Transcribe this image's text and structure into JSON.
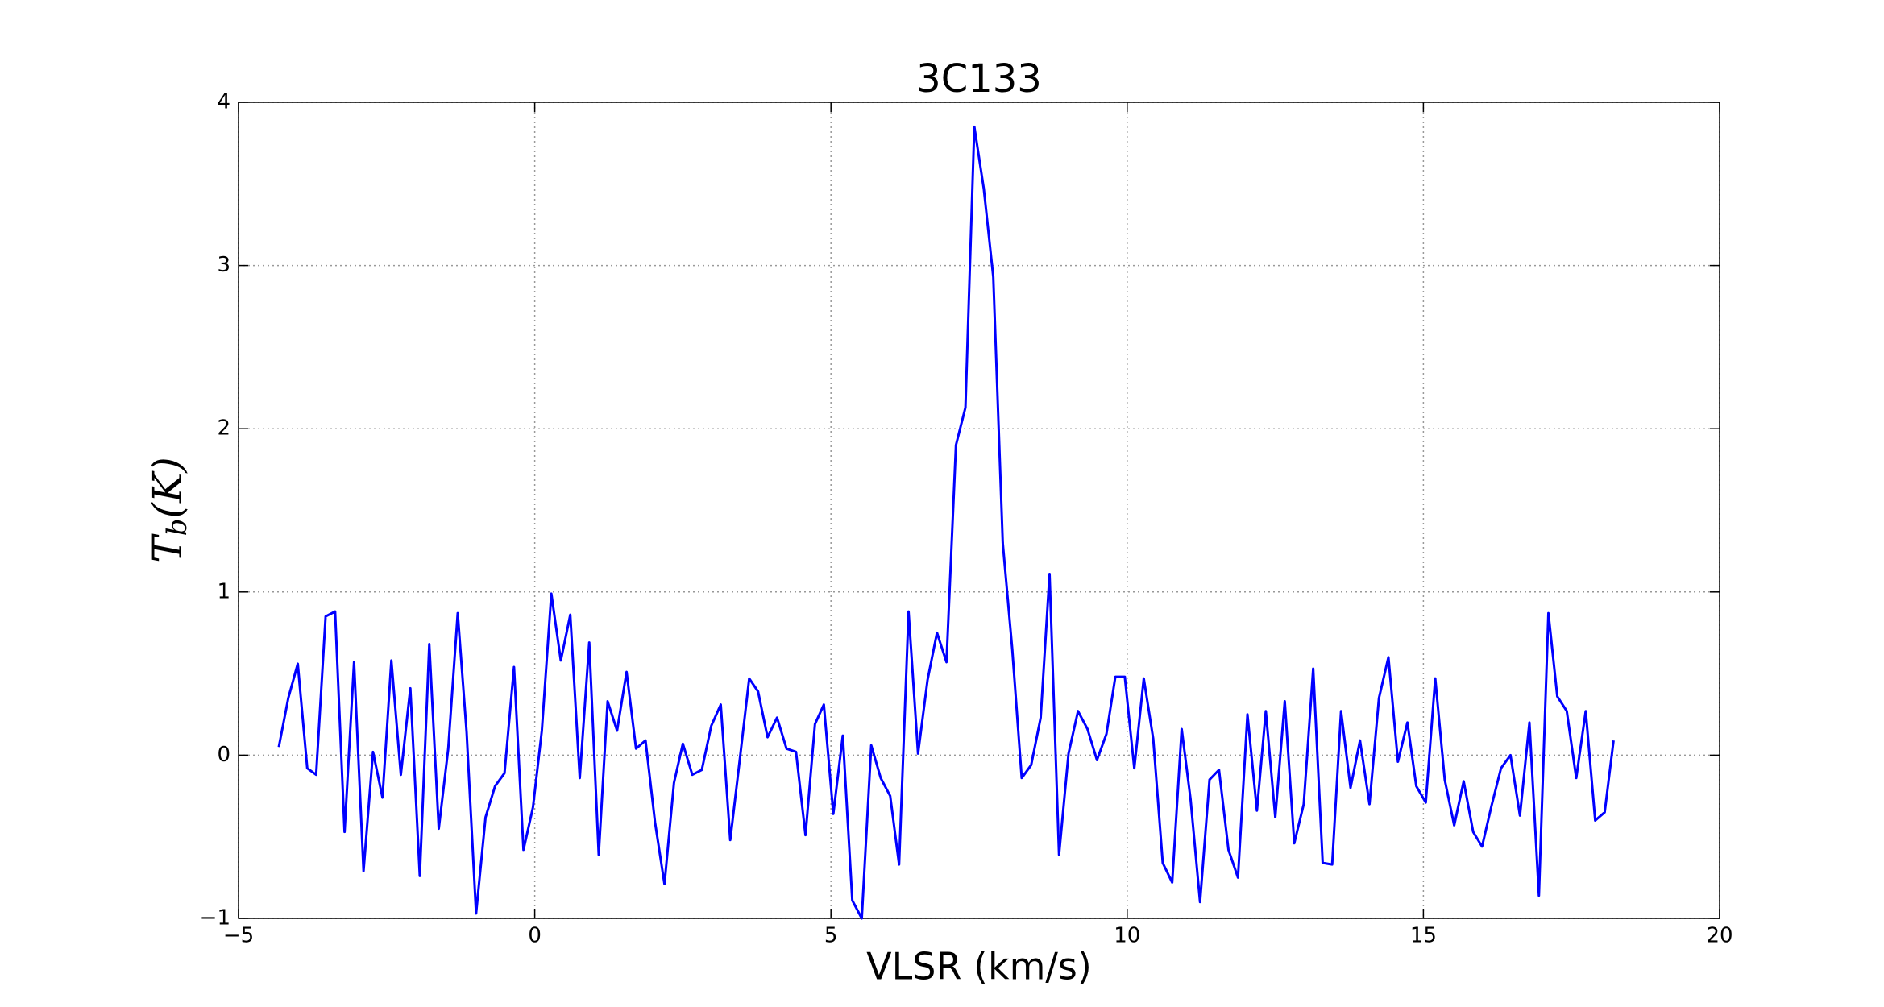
{
  "chart_data": {
    "type": "line",
    "title": "3C133",
    "xlabel": "VLSR (km/s)",
    "ylabel": "T_b(K)",
    "xlim": [
      -5,
      20
    ],
    "xticks": [
      {
        "value": -5,
        "label": "−5"
      },
      0,
      5,
      10,
      15,
      20
    ],
    "ylim": [
      -1,
      4
    ],
    "yticks": [
      {
        "value": -1,
        "label": "−1"
      },
      0,
      1,
      2,
      3,
      4
    ],
    "grid": true,
    "x": [
      -4.32,
      -4.16,
      -4.0,
      -3.84,
      -3.69,
      -3.53,
      -3.37,
      -3.21,
      -3.05,
      -2.89,
      -2.73,
      -2.57,
      -2.42,
      -2.26,
      -2.1,
      -1.94,
      -1.78,
      -1.62,
      -1.46,
      -1.3,
      -1.15,
      -0.99,
      -0.83,
      -0.67,
      -0.51,
      -0.35,
      -0.19,
      -0.03,
      0.12,
      0.28,
      0.44,
      0.6,
      0.76,
      0.92,
      1.08,
      1.23,
      1.39,
      1.55,
      1.71,
      1.87,
      2.03,
      2.19,
      2.35,
      2.5,
      2.66,
      2.82,
      2.98,
      3.14,
      3.3,
      3.46,
      3.62,
      3.77,
      3.93,
      4.09,
      4.25,
      4.41,
      4.57,
      4.73,
      4.88,
      5.04,
      5.2,
      5.36,
      5.52,
      5.68,
      5.84,
      6.0,
      6.15,
      6.31,
      6.47,
      6.63,
      6.79,
      6.95,
      7.11,
      7.27,
      7.42,
      7.58,
      7.74,
      7.9,
      8.06,
      8.22,
      8.38,
      8.54,
      8.69,
      8.85,
      9.01,
      9.17,
      9.33,
      9.49,
      9.65,
      9.8,
      9.96,
      10.12,
      10.28,
      10.44,
      10.6,
      10.76,
      10.92,
      11.07,
      11.23,
      11.39,
      11.55,
      11.71,
      11.87,
      12.03,
      12.19,
      12.34,
      12.5,
      12.66,
      12.82,
      12.98,
      13.14,
      13.3,
      13.46,
      13.61,
      13.77,
      13.93,
      14.09,
      14.25,
      14.41,
      14.57,
      14.73,
      14.88,
      15.04,
      15.2,
      15.36,
      15.52,
      15.68,
      15.84,
      15.99,
      16.15,
      16.31,
      16.47,
      16.63,
      16.79,
      16.95,
      17.11,
      17.26,
      17.42,
      17.58,
      17.74,
      17.9,
      18.06,
      18.21
    ],
    "series": [
      {
        "color": "#0000ff",
        "values": [
          0.05,
          0.35,
          0.56,
          -0.08,
          -0.12,
          0.85,
          0.88,
          -0.47,
          0.57,
          -0.71,
          0.02,
          -0.26,
          0.58,
          -0.12,
          0.41,
          -0.74,
          0.68,
          -0.45,
          0.04,
          0.87,
          0.14,
          -0.97,
          -0.38,
          -0.19,
          -0.11,
          0.54,
          -0.58,
          -0.32,
          0.15,
          0.99,
          0.58,
          0.86,
          -0.14,
          0.69,
          -0.61,
          0.33,
          0.15,
          0.51,
          0.04,
          0.09,
          -0.41,
          -0.79,
          -0.17,
          0.07,
          -0.12,
          -0.09,
          0.18,
          0.31,
          -0.52,
          -0.03,
          0.47,
          0.39,
          0.11,
          0.23,
          0.04,
          0.02,
          -0.49,
          0.19,
          0.31,
          -0.36,
          0.12,
          -0.89,
          -1.0,
          0.06,
          -0.14,
          -0.25,
          -0.67,
          0.88,
          0.01,
          0.46,
          0.75,
          0.57,
          1.9,
          2.13,
          3.85,
          3.47,
          2.93,
          1.3,
          0.65,
          -0.14,
          -0.06,
          0.23,
          1.11,
          -0.61,
          0.01,
          0.27,
          0.16,
          -0.03,
          0.13,
          0.48,
          0.48,
          -0.08,
          0.47,
          0.1,
          -0.66,
          -0.78,
          0.16,
          -0.27,
          -0.9,
          -0.15,
          -0.09,
          -0.58,
          -0.75,
          0.25,
          -0.34,
          0.27,
          -0.38,
          0.33,
          -0.54,
          -0.3,
          0.53,
          -0.66,
          -0.67,
          0.27,
          -0.2,
          0.09,
          -0.3,
          0.35,
          0.6,
          -0.04,
          0.2,
          -0.19,
          -0.29,
          0.47,
          -0.15,
          -0.43,
          -0.16,
          -0.47,
          -0.56,
          -0.31,
          -0.08,
          0.0,
          -0.37,
          0.2,
          -0.86,
          0.87,
          0.36,
          0.27,
          -0.14,
          0.27,
          -0.4,
          -0.35,
          0.09
        ]
      }
    ]
  }
}
